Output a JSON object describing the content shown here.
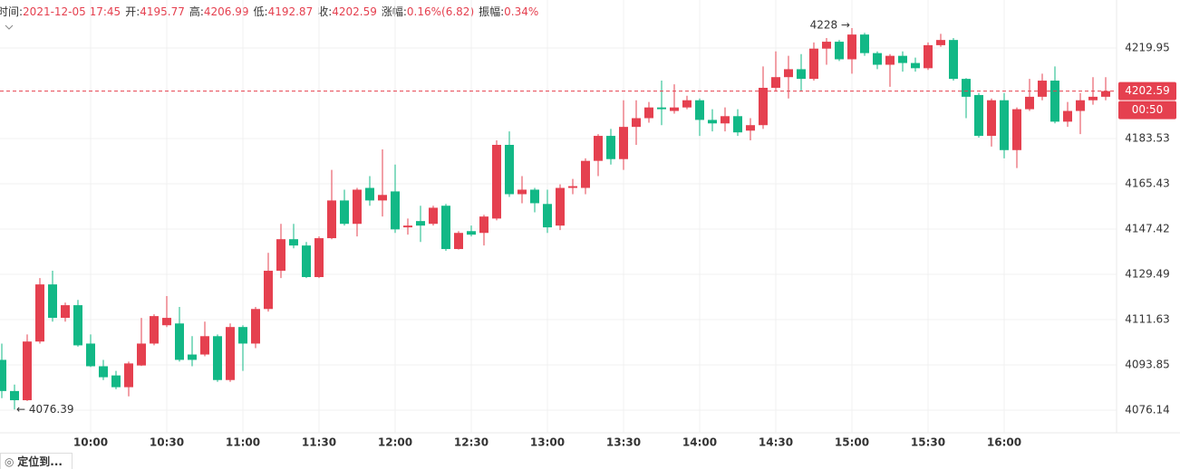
{
  "header": {
    "items": [
      {
        "label": "时间:",
        "value": "2021-12-05 17:45"
      },
      {
        "label": "开:",
        "value": "4195.77"
      },
      {
        "label": "高:",
        "value": "4206.99"
      },
      {
        "label": "低:",
        "value": "4192.87"
      },
      {
        "label": "收:",
        "value": "4202.59"
      },
      {
        "label": "涨幅:",
        "value": "0.16%(6.82)"
      },
      {
        "label": "振幅:",
        "value": "0.34%"
      }
    ]
  },
  "button": "定位到...",
  "chart_data": {
    "type": "candlestick",
    "up_color": "#e5404f",
    "down_color": "#12b886",
    "log_scale": true,
    "grid": true,
    "ylim": [
      4067.3,
      4239.4
    ],
    "yticks": [
      4076.14,
      4093.85,
      4111.63,
      4129.49,
      4147.42,
      4165.43,
      4183.53,
      4219.95
    ],
    "categories": [
      null,
      null,
      null,
      null,
      null,
      null,
      null,
      "10:00",
      null,
      null,
      null,
      null,
      null,
      "10:30",
      null,
      null,
      null,
      null,
      null,
      "11:00",
      null,
      null,
      null,
      null,
      null,
      "11:30",
      null,
      null,
      null,
      null,
      null,
      "12:00",
      null,
      null,
      null,
      null,
      null,
      "12:30",
      null,
      null,
      null,
      null,
      null,
      "13:00",
      null,
      null,
      null,
      null,
      null,
      "13:30",
      null,
      null,
      null,
      null,
      null,
      "14:00",
      null,
      null,
      null,
      null,
      null,
      "14:30",
      null,
      null,
      null,
      null,
      null,
      "15:00",
      null,
      null,
      null,
      null,
      null,
      "15:30",
      null,
      null,
      null,
      null,
      null,
      "16:00",
      null,
      null,
      null,
      null,
      null,
      null,
      null,
      null
    ],
    "open": [
      4095.8,
      4083.6,
      4080.0,
      4103.0,
      4125.5,
      4112.3,
      4117.3,
      4102.2,
      4093.3,
      4089.7,
      4085.1,
      4093.6,
      4102.2,
      4109.4,
      4110.1,
      4097.9,
      4097.9,
      4105.1,
      4087.9,
      4108.7,
      4102.2,
      4115.8,
      4130.9,
      4143.4,
      4140.9,
      4128.4,
      4143.8,
      4158.8,
      4149.5,
      4163.8,
      4158.8,
      4162.4,
      4148.1,
      4150.6,
      4149.5,
      4156.7,
      4139.5,
      4146.6,
      4145.9,
      4151.6,
      4181.0,
      4161.3,
      4163.1,
      4157.4,
      4148.8,
      4163.8,
      4163.8,
      4174.6,
      4184.6,
      4175.3,
      4188.2,
      4191.7,
      4196.0,
      4194.6,
      4196.0,
      4198.9,
      4191.0,
      4189.6,
      4192.5,
      4186.7,
      4188.9,
      4203.9,
      4208.2,
      4211.4,
      4207.5,
      4219.7,
      4222.5,
      4215.4,
      4225.4,
      4217.9,
      4213.2,
      4216.8,
      4213.9,
      4211.8,
      4221.1,
      4223.2,
      4207.5,
      4201.0,
      4184.6,
      4198.9,
      4178.9,
      4195.3,
      4200.3,
      4206.8,
      4190.3,
      4194.6,
      4198.9,
      4200.3
    ],
    "high": [
      4102.2,
      4086.1,
      4105.8,
      4128.0,
      4130.9,
      4118.3,
      4119.4,
      4105.8,
      4095.8,
      4091.5,
      4095.1,
      4112.3,
      4113.7,
      4120.9,
      4116.6,
      4105.1,
      4110.8,
      4105.8,
      4110.1,
      4109.4,
      4116.6,
      4138.0,
      4149.5,
      4149.5,
      4142.3,
      4144.5,
      4171.0,
      4163.1,
      4163.8,
      4168.5,
      4179.2,
      4173.1,
      4151.6,
      4156.7,
      4156.7,
      4157.4,
      4146.6,
      4148.8,
      4153.1,
      4182.8,
      4186.4,
      4168.5,
      4163.8,
      4163.1,
      4165.2,
      4167.4,
      4175.6,
      4185.3,
      4187.4,
      4198.9,
      4198.9,
      4198.2,
      4206.8,
      4205.3,
      4200.7,
      4199.6,
      4195.3,
      4196.0,
      4195.3,
      4191.7,
      4212.5,
      4218.6,
      4216.8,
      4217.5,
      4222.2,
      4224.0,
      4223.2,
      4228,
      4226.1,
      4218.6,
      4217.5,
      4218.6,
      4216.1,
      4222.2,
      4225.7,
      4224.0,
      4207.8,
      4201.8,
      4199.6,
      4201.8,
      4196.0,
      4207.5,
      4209.6,
      4212.5,
      4198.2,
      4201.8,
      4208.2,
      4208.2
    ],
    "low": [
      4080.8,
      4076.39,
      4079.7,
      4102.2,
      4110.8,
      4110.8,
      4101.0,
      4093.0,
      4087.9,
      4084.3,
      4081.5,
      4093.4,
      4101.5,
      4108.7,
      4095.1,
      4093.3,
      4097.2,
      4087.2,
      4087.2,
      4091.5,
      4100.4,
      4114.8,
      4128.0,
      4139.8,
      4128.0,
      4128.0,
      4143.4,
      4148.8,
      4144.5,
      4156.7,
      4152.4,
      4145.9,
      4145.2,
      4142.3,
      4148.8,
      4138.8,
      4139.3,
      4144.5,
      4140.9,
      4150.9,
      4160.2,
      4157.7,
      4154.1,
      4145.9,
      4147.0,
      4161.3,
      4161.3,
      4168.5,
      4173.1,
      4171.0,
      4181.0,
      4189.9,
      4188.9,
      4193.5,
      4195.3,
      4184.6,
      4186.4,
      4186.4,
      4184.6,
      4182.8,
      4187.4,
      4202.5,
      4199.6,
      4202.5,
      4206.8,
      4213.2,
      4214.7,
      4209.6,
      4216.8,
      4211.4,
      4204.3,
      4210.4,
      4210.4,
      4211.1,
      4220.4,
      4206.8,
      4191.7,
      4183.9,
      4180.3,
      4175.6,
      4171.7,
      4194.6,
      4198.9,
      4189.6,
      4188.2,
      4185.3,
      4197.1,
      4198.9
    ],
    "close": [
      4083.6,
      4080.0,
      4103.0,
      4125.5,
      4112.3,
      4117.3,
      4101.5,
      4093.3,
      4089.0,
      4085.1,
      4094.4,
      4102.2,
      4113.0,
      4112.3,
      4095.8,
      4095.8,
      4105.1,
      4087.9,
      4108.7,
      4102.2,
      4115.8,
      4130.9,
      4143.4,
      4140.9,
      4128.4,
      4143.8,
      4158.8,
      4149.5,
      4163.1,
      4158.8,
      4161.0,
      4147.3,
      4148.8,
      4148.8,
      4155.9,
      4139.5,
      4145.9,
      4145.2,
      4152.4,
      4181.0,
      4161.3,
      4163.1,
      4157.7,
      4148.1,
      4163.8,
      4164.5,
      4174.6,
      4184.6,
      4175.3,
      4188.2,
      4191.7,
      4196.0,
      4195.3,
      4196.0,
      4198.9,
      4191.0,
      4189.6,
      4192.5,
      4186.0,
      4188.9,
      4203.9,
      4208.2,
      4211.4,
      4207.5,
      4219.7,
      4222.5,
      4215.4,
      4225.4,
      4217.9,
      4213.2,
      4216.8,
      4213.9,
      4211.8,
      4221.1,
      4223.2,
      4207.5,
      4200.3,
      4184.6,
      4198.9,
      4178.9,
      4195.3,
      4200.3,
      4206.8,
      4190.3,
      4194.6,
      4198.9,
      4200.3,
      4202.59
    ],
    "min_label": {
      "value": 4076.39,
      "label": "← 4076.39"
    },
    "max_label": {
      "value": 4228,
      "label": "4228 →"
    },
    "last_price": 4202.59,
    "countdown": "00:50"
  }
}
